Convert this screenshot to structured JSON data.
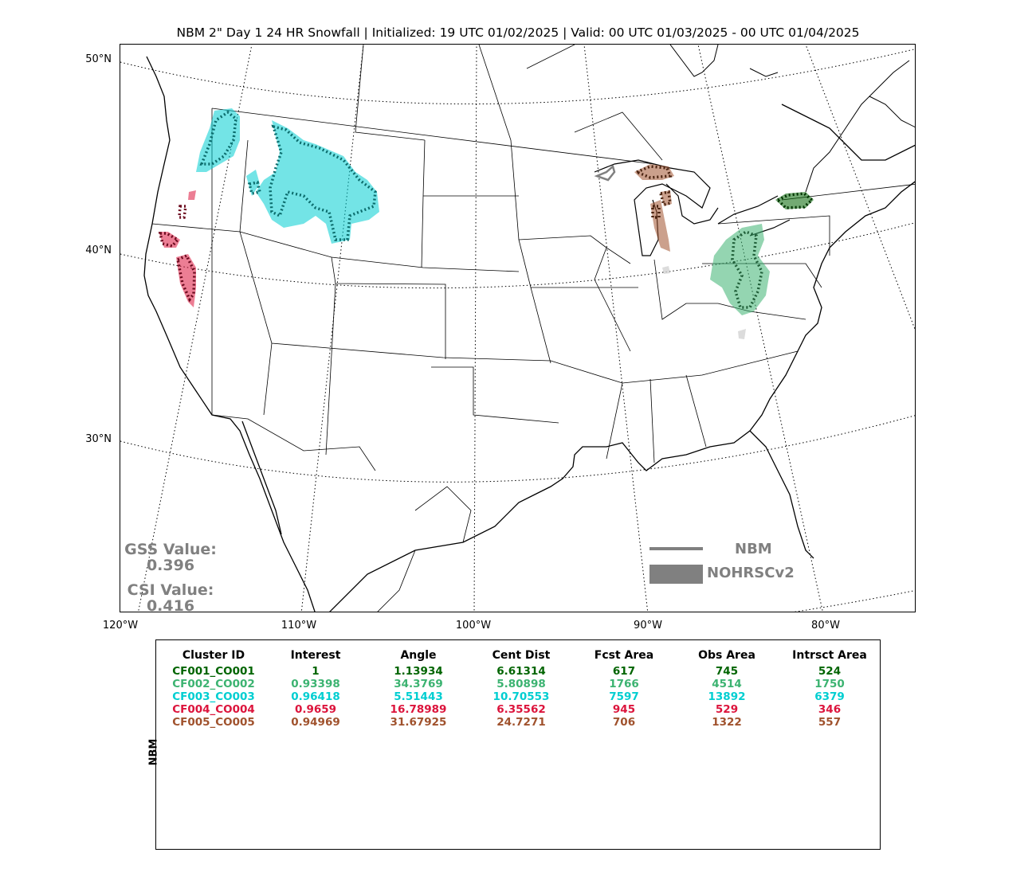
{
  "title": "NBM 2\" Day 1 24 HR Snowfall | Initialized: 19 UTC 01/02/2025 | Valid: 00 UTC 01/03/2025 - 00 UTC 01/04/2025",
  "lat_labels": [
    "50°N",
    "40°N",
    "30°N"
  ],
  "lon_labels": [
    "120°W",
    "110°W",
    "100°W",
    "90°W",
    "80°W"
  ],
  "stats": {
    "gss_label": "GSS Value:",
    "gss_value": "0.396",
    "csi_label": "CSI Value:",
    "csi_value": "0.416"
  },
  "legend": {
    "line_label": "NBM",
    "patch_label": "NOHRSCv2",
    "color": "#808080"
  },
  "table": {
    "ylabel": "NBM",
    "columns": [
      "Cluster ID",
      "Interest",
      "Angle",
      "Cent Dist",
      "Fcst Area",
      "Obs Area",
      "Intrsct Area"
    ],
    "rows": [
      {
        "color": "#006400",
        "cells": [
          "CF001_CO001",
          "1",
          "1.13934",
          "6.61314",
          "617",
          "745",
          "524"
        ]
      },
      {
        "color": "#3cb371",
        "cells": [
          "CF002_CO002",
          "0.93398",
          "34.3769",
          "5.80898",
          "1766",
          "4514",
          "1750"
        ]
      },
      {
        "color": "#00ced1",
        "cells": [
          "CF003_CO003",
          "0.96418",
          "5.51443",
          "10.70553",
          "7597",
          "13892",
          "6379"
        ]
      },
      {
        "color": "#dc143c",
        "cells": [
          "CF004_CO004",
          "0.9659",
          "16.78989",
          "6.35562",
          "945",
          "529",
          "346"
        ]
      },
      {
        "color": "#a0522d",
        "cells": [
          "CF005_CO005",
          "0.94969",
          "31.67925",
          "24.7271",
          "706",
          "1322",
          "557"
        ]
      }
    ]
  },
  "clusters": {
    "dark_green": "#006400",
    "medium_green": "#3cb371",
    "turquoise": "#00ced1",
    "crimson": "#dc143c",
    "sienna": "#a0522d"
  }
}
